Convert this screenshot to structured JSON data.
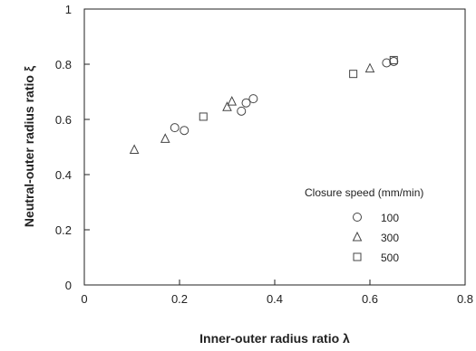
{
  "chart_data": {
    "type": "scatter",
    "xlabel": "Inner-outer  radius  ratio  λ",
    "ylabel": "Neutral-outer  radius  ratio  ξ",
    "xlim": [
      0,
      0.8
    ],
    "ylim": [
      0,
      1
    ],
    "xticks": [
      "0",
      "0.2",
      "0.4",
      "0.6",
      "0.8"
    ],
    "yticks": [
      "0",
      "0.2",
      "0.4",
      "0.6",
      "0.8",
      "1"
    ],
    "grid": false,
    "legend": {
      "title": "Closure speed (mm/min)",
      "position": "lower-right"
    },
    "series": [
      {
        "name": "100",
        "marker": "circle",
        "points": [
          [
            0.19,
            0.57
          ],
          [
            0.21,
            0.56
          ],
          [
            0.33,
            0.63
          ],
          [
            0.34,
            0.66
          ],
          [
            0.355,
            0.675
          ],
          [
            0.635,
            0.805
          ],
          [
            0.65,
            0.81
          ]
        ]
      },
      {
        "name": "300",
        "marker": "triangle",
        "points": [
          [
            0.105,
            0.49
          ],
          [
            0.17,
            0.53
          ],
          [
            0.3,
            0.645
          ],
          [
            0.31,
            0.665
          ],
          [
            0.6,
            0.785
          ]
        ]
      },
      {
        "name": "500",
        "marker": "square",
        "points": [
          [
            0.25,
            0.61
          ],
          [
            0.565,
            0.765
          ],
          [
            0.65,
            0.815
          ]
        ]
      }
    ]
  },
  "colors": {
    "marker": "#444444",
    "axis": "#222222"
  }
}
